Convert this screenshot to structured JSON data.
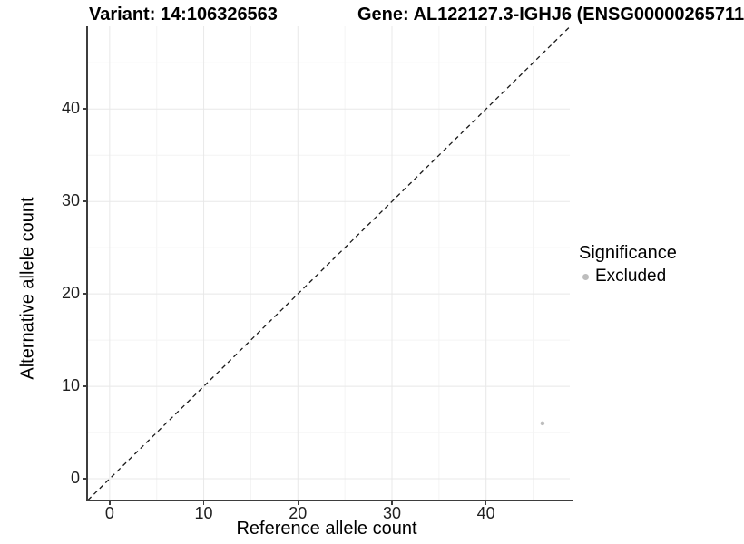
{
  "header": {
    "variant_title": "Variant: 14:106326563",
    "gene_title": "Gene: AL122127.3-IGHJ6 (ENSG00000265711"
  },
  "chart_data": {
    "type": "scatter",
    "title": "Variant: 14:106326563 — Gene: AL122127.3-IGHJ6 (ENSG00000265711…)",
    "xlabel": "Reference allele count",
    "ylabel": "Alternative allele count",
    "xlim": [
      -2.3,
      48.9
    ],
    "ylim": [
      -2.35,
      48.95
    ],
    "xticks": [
      0,
      10,
      20,
      30,
      40
    ],
    "yticks": [
      0,
      10,
      20,
      30,
      40
    ],
    "xminor": [
      5,
      15,
      25,
      35,
      45
    ],
    "yminor": [
      5,
      15,
      25,
      35,
      45
    ],
    "grid": true,
    "legend_position": "right",
    "reference_line": {
      "type": "identity",
      "slope": 1,
      "intercept": 0,
      "style": "dashed",
      "color": "#1a1a1a"
    },
    "series": [
      {
        "name": "Excluded",
        "color": "#bdbdbd",
        "point_radius": 2.3,
        "points": [
          {
            "x": 46,
            "y": 6
          }
        ]
      }
    ]
  },
  "legend": {
    "title": "Significance",
    "items": [
      {
        "label": "Excluded",
        "color": "#bdbdbd"
      }
    ]
  },
  "colors": {
    "background": "#ffffff",
    "grid_major": "#e8e8e8",
    "grid_minor": "#f4f4f4",
    "axis_line": "#3d3d3d",
    "tick_text": "#1f1f1f",
    "title_text": "#000000"
  }
}
